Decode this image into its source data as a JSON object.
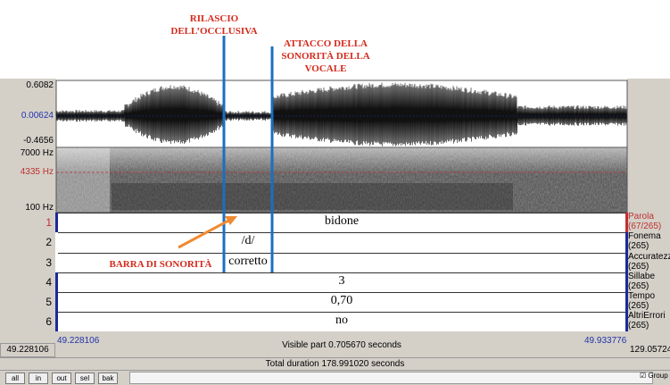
{
  "annotations": {
    "release": [
      "RILASCIO",
      "DELL’OCCLUSIVA"
    ],
    "onset": [
      "ATTACCO DELLA",
      "SONORITÀ DELLA",
      "VOCALE"
    ],
    "voicing_bar": "BARRA DI SONORITÀ"
  },
  "waveform": {
    "max": "0.6082",
    "center": "0.00624",
    "min": "-0.4656"
  },
  "spectrogram": {
    "top": "7000 Hz",
    "cursor": "4335 Hz",
    "bottom": "100 Hz"
  },
  "tiers": [
    {
      "number": "1",
      "text": "bidone",
      "name": "Parola",
      "count": "(67/265)"
    },
    {
      "number": "2",
      "text": "/d/",
      "name": "Fonema",
      "count": "(265)"
    },
    {
      "number": "3",
      "text": "corretto",
      "name": "Accuratezza",
      "count": "(265)"
    },
    {
      "number": "4",
      "text": "3",
      "name": "Sillabe",
      "count": "(265)"
    },
    {
      "number": "5",
      "text": "0,70",
      "name": "Tempo",
      "count": "(265)"
    },
    {
      "number": "6",
      "text": "no",
      "name": "AltriErrori",
      "count": "(265)"
    }
  ],
  "footer": {
    "window_start": "49.228106",
    "visible_start": "49.228106",
    "visible_part": "Visible part 0.705670 seconds",
    "visible_end": "49.933776",
    "window_end": "129.05724",
    "total": "Total duration 178.991020 seconds"
  },
  "buttons": [
    "all",
    "in",
    "out",
    "sel",
    "bak"
  ],
  "group": "Group"
}
